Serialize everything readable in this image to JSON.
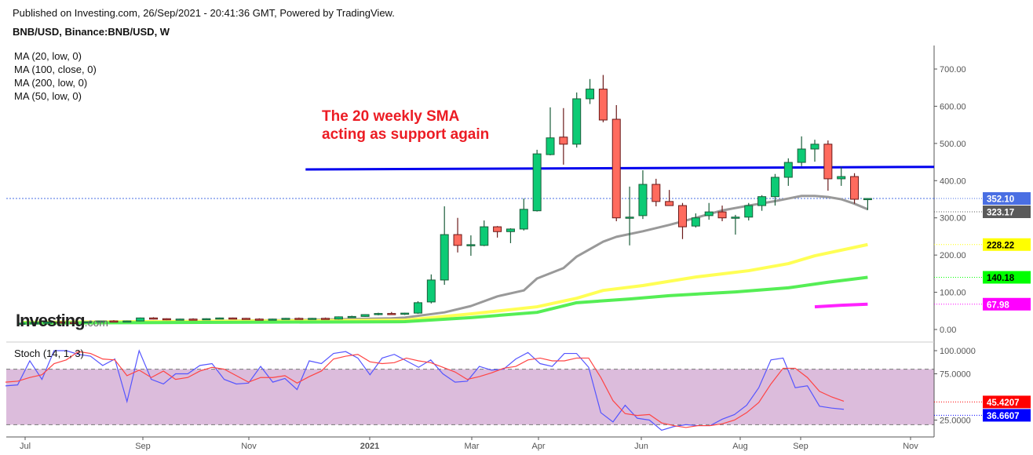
{
  "header": {
    "published": "Published on Investing.com, 26/Sep/2021 - 20:41:36 GMT, Powered by TradingView.",
    "symbol": "BNB/USD, Binance:BNB/USD, W"
  },
  "indicators": [
    "MA (20, low, 0)",
    "MA (100, close, 0)",
    "MA (200, low, 0)",
    "MA (50, low, 0)"
  ],
  "annotation": [
    "The 20 weekly SMA",
    "acting as support again"
  ],
  "logo": {
    "main": "Investing",
    "suffix": ".com"
  },
  "colors": {
    "up": "#0ccb75",
    "down": "#ff6b5e",
    "ma20": "#999999",
    "ma100": "#ffff55",
    "ma200": "#55ee55",
    "ma50": "#ff22ff",
    "support": "#0000ee",
    "stoch_k": "#5555ff",
    "stoch_d": "#ff4444",
    "stoch_band": "#dcbcdc"
  },
  "chart_data": [
    {
      "type": "candlestick",
      "title": "BNB/USD, Binance:BNB/USD, W",
      "ylim": [
        -25,
        760
      ],
      "y_ticks": [
        "0.00",
        "100.00",
        "200.00",
        "300.00",
        "400.00",
        "500.00",
        "600.00",
        "700.00"
      ],
      "y_tick_values": [
        0,
        100,
        200,
        300,
        400,
        500,
        600,
        700
      ],
      "x_tick_labels": [
        "Jul",
        "Sep",
        "Nov",
        "2021",
        "Mar",
        "Apr",
        "Jun",
        "Aug",
        "Sep",
        "Nov"
      ],
      "ohlc": [
        [
          16,
          18,
          15,
          17
        ],
        [
          17,
          19,
          16,
          18
        ],
        [
          18,
          21,
          17,
          20
        ],
        [
          20,
          22,
          18,
          19
        ],
        [
          19,
          20,
          17,
          18
        ],
        [
          18,
          22,
          17,
          21
        ],
        [
          21,
          24,
          20,
          23
        ],
        [
          23,
          25,
          20,
          21
        ],
        [
          21,
          24,
          19,
          23
        ],
        [
          23,
          32,
          22,
          31
        ],
        [
          31,
          33,
          27,
          29
        ],
        [
          29,
          30,
          25,
          26
        ],
        [
          26,
          29,
          25,
          28
        ],
        [
          28,
          30,
          26,
          27
        ],
        [
          27,
          30,
          26,
          29
        ],
        [
          29,
          32,
          28,
          31
        ],
        [
          31,
          32,
          28,
          30
        ],
        [
          30,
          31,
          27,
          28
        ],
        [
          28,
          30,
          26,
          27
        ],
        [
          27,
          29,
          26,
          28
        ],
        [
          28,
          31,
          27,
          30
        ],
        [
          30,
          32,
          28,
          29
        ],
        [
          29,
          31,
          28,
          30
        ],
        [
          30,
          32,
          27,
          28
        ],
        [
          28,
          35,
          27,
          34
        ],
        [
          34,
          37,
          32,
          35
        ],
        [
          35,
          41,
          34,
          40
        ],
        [
          40,
          45,
          38,
          43
        ],
        [
          43,
          47,
          39,
          41
        ],
        [
          41,
          45,
          39,
          44
        ],
        [
          44,
          76,
          42,
          72
        ],
        [
          74,
          148,
          70,
          133
        ],
        [
          133,
          331,
          120,
          255
        ],
        [
          255,
          300,
          207,
          226
        ],
        [
          226,
          253,
          198,
          228
        ],
        [
          226,
          293,
          224,
          276
        ],
        [
          276,
          278,
          247,
          263
        ],
        [
          263,
          272,
          232,
          270
        ],
        [
          270,
          352,
          266,
          323
        ],
        [
          319,
          483,
          317,
          472
        ],
        [
          470,
          597,
          468,
          515
        ],
        [
          517,
          595,
          443,
          498
        ],
        [
          498,
          637,
          489,
          620
        ],
        [
          620,
          673,
          606,
          646
        ],
        [
          646,
          684,
          557,
          563
        ],
        [
          565,
          603,
          291,
          300
        ],
        [
          300,
          384,
          226,
          302
        ],
        [
          306,
          428,
          297,
          390
        ],
        [
          390,
          405,
          331,
          344
        ],
        [
          344,
          375,
          333,
          333
        ],
        [
          333,
          340,
          243,
          276
        ],
        [
          278,
          312,
          274,
          300
        ],
        [
          306,
          340,
          295,
          316
        ],
        [
          316,
          333,
          291,
          300
        ],
        [
          300,
          308,
          255,
          302
        ],
        [
          302,
          340,
          293,
          333
        ],
        [
          333,
          361,
          319,
          357
        ],
        [
          357,
          418,
          333,
          409
        ],
        [
          409,
          460,
          386,
          449
        ],
        [
          449,
          519,
          439,
          485
        ],
        [
          485,
          510,
          451,
          498
        ],
        [
          498,
          508,
          373,
          405
        ],
        [
          405,
          437,
          386,
          411
        ],
        [
          411,
          420,
          338,
          350
        ],
        [
          350,
          352,
          321,
          352
        ]
      ],
      "moving_averages": [
        {
          "name": "MA (20, low, 0)",
          "color_key": "ma20",
          "last": "323.17",
          "points": [
            [
              0,
              18
            ],
            [
              10,
              22
            ],
            [
              20,
              25
            ],
            [
              28,
              30
            ],
            [
              29,
              32
            ],
            [
              32,
              46
            ],
            [
              34,
              63
            ],
            [
              36,
              89
            ],
            [
              38,
              105
            ],
            [
              39,
              137
            ],
            [
              41,
              165
            ],
            [
              42,
              196
            ],
            [
              44,
              236
            ],
            [
              45,
              249
            ],
            [
              47,
              264
            ],
            [
              49,
              281
            ],
            [
              51,
              300
            ],
            [
              53,
              320
            ],
            [
              55,
              333
            ],
            [
              57,
              345
            ],
            [
              58,
              352
            ],
            [
              59,
              359
            ],
            [
              60,
              359
            ],
            [
              61,
              356
            ],
            [
              62,
              350
            ],
            [
              63,
              338
            ],
            [
              64,
              323.17
            ]
          ]
        },
        {
          "name": "MA (100, close, 0)",
          "color_key": "ma100",
          "last": "228.22",
          "points": [
            [
              0,
              19
            ],
            [
              29,
              25
            ],
            [
              34,
              42
            ],
            [
              39,
              61
            ],
            [
              42,
              84
            ],
            [
              44,
              105
            ],
            [
              47,
              118
            ],
            [
              51,
              141
            ],
            [
              55,
              158
            ],
            [
              58,
              177
            ],
            [
              60,
              198
            ],
            [
              64,
              228.22
            ]
          ]
        },
        {
          "name": "MA (200, low, 0)",
          "color_key": "ma200",
          "last": "140.18",
          "points": [
            [
              0,
              17
            ],
            [
              29,
              21
            ],
            [
              34,
              32
            ],
            [
              39,
              46
            ],
            [
              42,
              72
            ],
            [
              46,
              82
            ],
            [
              49,
              91
            ],
            [
              54,
              101
            ],
            [
              58,
              112
            ],
            [
              61,
              127
            ],
            [
              64,
              140.18
            ]
          ]
        },
        {
          "name": "MA (50, low, 0)",
          "color_key": "ma50",
          "last": "67.98",
          "points": [
            [
              60,
              61
            ],
            [
              62,
              65
            ],
            [
              64,
              67.98
            ]
          ]
        }
      ],
      "support_line": {
        "from": [
          21.5,
          430
        ],
        "to": [
          72,
          437
        ]
      },
      "last_price": "352.10",
      "last_price_value": 352.1
    },
    {
      "type": "line",
      "title": "Stoch (14, 1, 3)",
      "ylim": [
        7,
        107
      ],
      "y_ticks": [
        "100.0000",
        "75.0000",
        "25.0000"
      ],
      "y_tick_values": [
        100,
        75,
        25
      ],
      "bands": [
        20,
        80
      ],
      "series": [
        {
          "name": "%K",
          "color_key": "stoch_k",
          "last": "36.6607",
          "values": [
            62,
            63,
            89,
            69,
            100,
            100,
            96,
            94,
            84,
            91,
            45,
            100,
            69,
            64,
            75,
            75,
            84,
            86,
            69,
            64,
            65,
            83,
            66,
            70,
            58,
            89,
            86,
            97,
            99,
            92,
            74,
            92,
            96,
            89,
            82,
            90,
            75,
            66,
            67,
            83,
            79,
            80,
            91,
            98,
            86,
            83,
            97,
            97,
            82,
            33,
            23,
            41,
            27,
            25,
            14,
            18,
            20,
            19,
            19,
            26,
            31,
            41,
            60,
            90,
            92,
            60,
            62,
            40,
            38,
            36.66
          ]
        },
        {
          "name": "%D",
          "color_key": "stoch_d",
          "last": "45.4207",
          "values": [
            66,
            67,
            71,
            74,
            86,
            90,
            99,
            97,
            91,
            90,
            73,
            79,
            71,
            78,
            69,
            71,
            78,
            82,
            80,
            73,
            66,
            71,
            71,
            73,
            65,
            72,
            78,
            91,
            94,
            96,
            88,
            86,
            87,
            92,
            89,
            87,
            82,
            77,
            69,
            72,
            76,
            81,
            83,
            90,
            92,
            89,
            89,
            92,
            92,
            71,
            46,
            32,
            30,
            31,
            22,
            19,
            17,
            19,
            19,
            21,
            25,
            33,
            44,
            64,
            81,
            81,
            71,
            56,
            50,
            45.42
          ]
        }
      ]
    }
  ]
}
